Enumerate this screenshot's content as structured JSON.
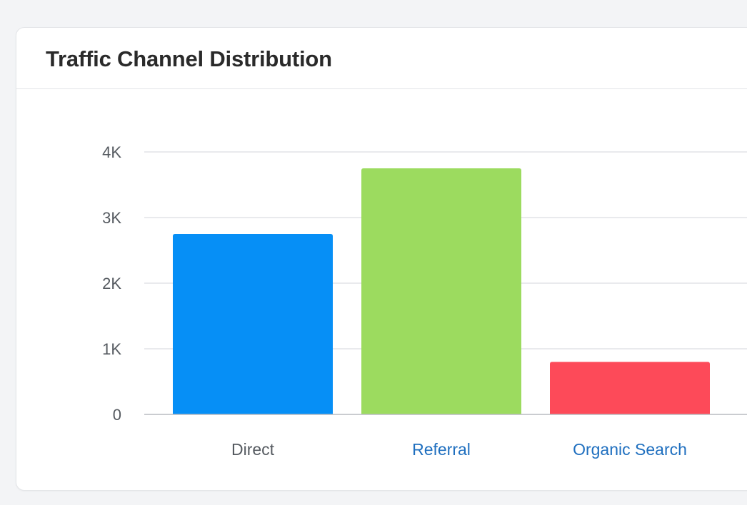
{
  "card": {
    "title": "Traffic Channel Distribution"
  },
  "chart_data": {
    "type": "bar",
    "title": "Traffic Channel Distribution",
    "categories": [
      "Direct",
      "Referral",
      "Organic Search"
    ],
    "values": [
      2750,
      3750,
      800
    ],
    "colors": [
      "#068ff6",
      "#9cdb5f",
      "#fd4a59"
    ],
    "category_label_colors": [
      "#555a60",
      "#1f6fbf",
      "#1f6fbf"
    ],
    "ylim": [
      0,
      4000
    ],
    "yticks": [
      0,
      1000,
      2000,
      3000,
      4000
    ],
    "ytick_labels": [
      "0",
      "1K",
      "2K",
      "3K",
      "4K"
    ],
    "xlabel": "",
    "ylabel": "",
    "grid": true,
    "legend": "none"
  }
}
